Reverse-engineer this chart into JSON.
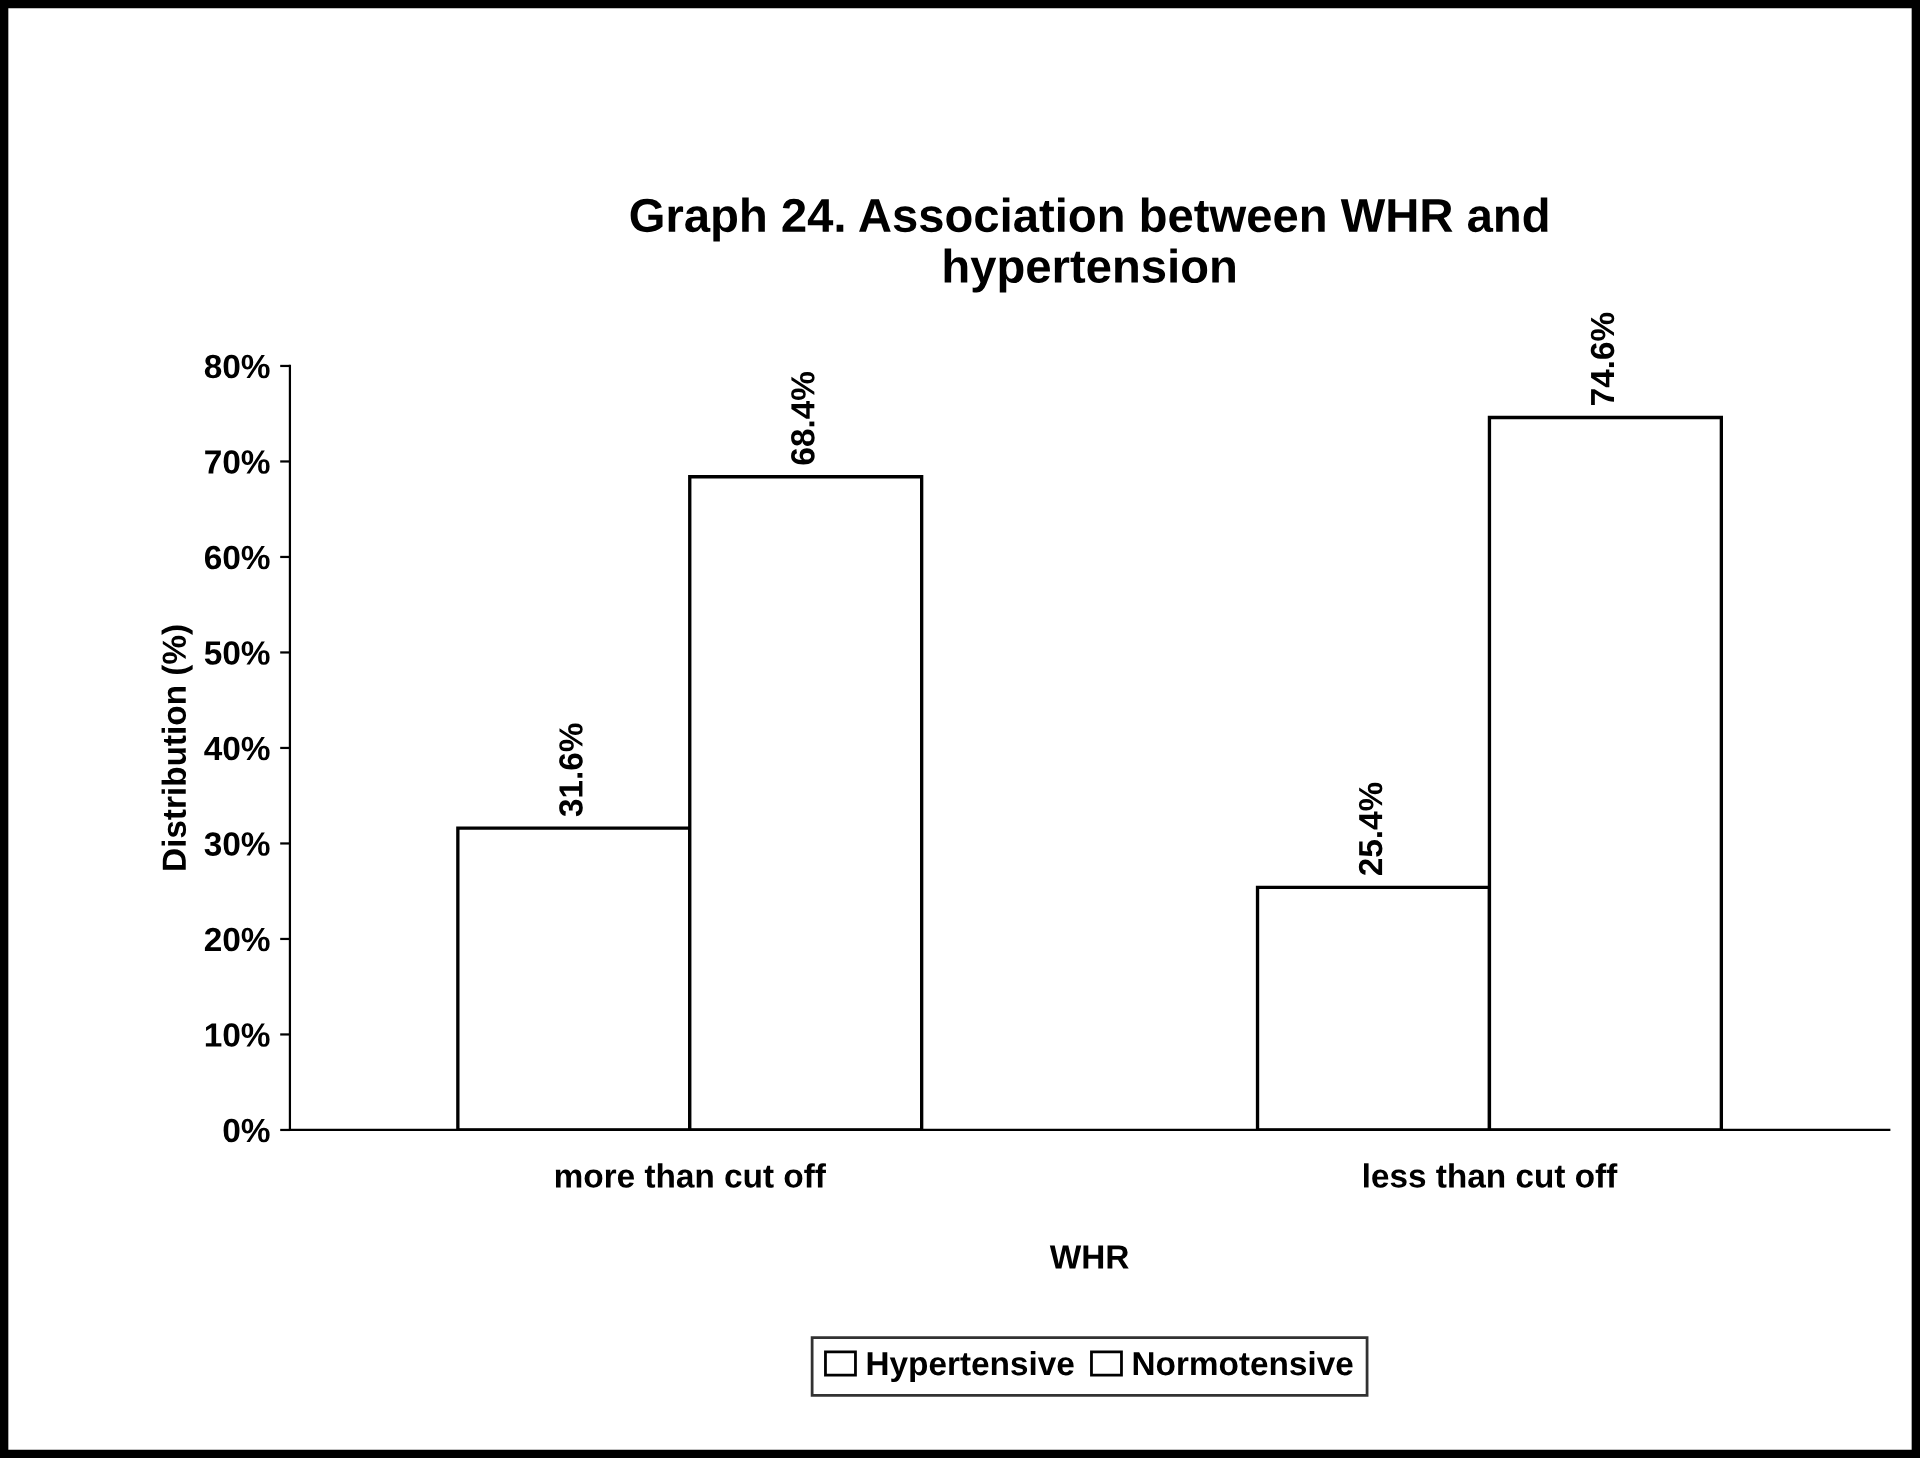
{
  "chart_data": {
    "type": "bar",
    "title": "Graph 24. Association between WHR and\nhypertension",
    "xlabel": "WHR",
    "ylabel": "Distribution (%)",
    "categories": [
      "more than cut off",
      "less than cut off"
    ],
    "series": [
      {
        "name": "Hypertensive",
        "color": "#ffffff",
        "values": [
          31.6,
          25.4
        ],
        "value_labels": [
          "31.6%",
          "25.4%"
        ]
      },
      {
        "name": "Normotensive",
        "color": "#ffffff",
        "values": [
          68.4,
          74.6
        ],
        "value_labels": [
          "68.4%",
          "74.6%"
        ]
      }
    ],
    "ylim": [
      0,
      80
    ],
    "yticks": [
      {
        "value": 0,
        "label": "0%"
      },
      {
        "value": 10,
        "label": "10%"
      },
      {
        "value": 20,
        "label": "20%"
      },
      {
        "value": 30,
        "label": "30%"
      },
      {
        "value": 40,
        "label": "40%"
      },
      {
        "value": 50,
        "label": "50%"
      },
      {
        "value": 60,
        "label": "60%"
      },
      {
        "value": 70,
        "label": "70%"
      },
      {
        "value": 80,
        "label": "80%"
      }
    ],
    "grid": false,
    "legend": "bottom"
  }
}
